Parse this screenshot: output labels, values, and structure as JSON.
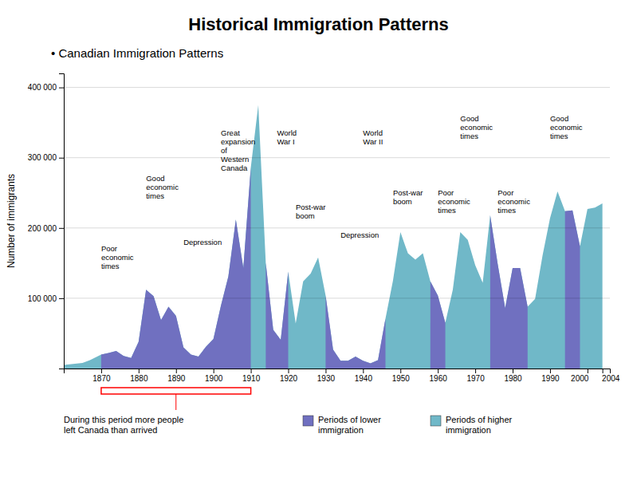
{
  "chart_data": {
    "type": "area",
    "title": "Historical Immigration Patterns",
    "subtitle": "• Canadian Immigration Patterns",
    "ylabel": "Number of immigrants",
    "x": [
      1860,
      1865,
      1867,
      1870,
      1872,
      1874,
      1876,
      1878,
      1880,
      1882,
      1884,
      1886,
      1888,
      1890,
      1892,
      1894,
      1896,
      1898,
      1900,
      1902,
      1904,
      1906,
      1908,
      1910,
      1912,
      1914,
      1916,
      1918,
      1920,
      1922,
      1924,
      1926,
      1928,
      1930,
      1932,
      1934,
      1936,
      1938,
      1940,
      1942,
      1944,
      1946,
      1948,
      1950,
      1952,
      1954,
      1956,
      1958,
      1960,
      1962,
      1964,
      1966,
      1968,
      1970,
      1972,
      1974,
      1976,
      1978,
      1980,
      1982,
      1984,
      1986,
      1988,
      1990,
      1992,
      1994,
      1996,
      1998,
      2000,
      2002,
      2004
    ],
    "values": [
      5000,
      8000,
      12000,
      20000,
      22000,
      25000,
      18000,
      15000,
      38000,
      112000,
      103000,
      69000,
      88000,
      75000,
      30000,
      20000,
      17000,
      31000,
      42000,
      89000,
      131000,
      212000,
      143000,
      286000,
      375000,
      150000,
      55000,
      41000,
      138000,
      64000,
      124000,
      135000,
      158000,
      104000,
      27000,
      11000,
      11000,
      17000,
      11000,
      7500,
      12000,
      71000,
      125000,
      194000,
      164000,
      155000,
      164000,
      124000,
      104000,
      65000,
      112000,
      194000,
      183000,
      147000,
      122000,
      218000,
      149000,
      86000,
      143000,
      143000,
      88000,
      99000,
      161000,
      214000,
      252000,
      224000,
      225000,
      174000,
      227000,
      229000,
      235000
    ],
    "series": [
      {
        "name": "Periods of lower\nimmigration",
        "color": "#7070c0",
        "periods": [
          [
            1870,
            1910
          ],
          [
            1914,
            1920
          ],
          [
            1929,
            1946
          ],
          [
            1957,
            1962
          ],
          [
            1974,
            1985
          ],
          [
            1993,
            1998
          ]
        ]
      },
      {
        "name": "Periods of higher\nimmigration",
        "color": "#70b8c8"
      }
    ],
    "xlim": [
      1860,
      2006
    ],
    "ylim": [
      0,
      420000
    ],
    "xticks": [
      1870,
      1880,
      1890,
      1900,
      1910,
      1920,
      1930,
      1940,
      1950,
      1960,
      1970,
      1980,
      1990,
      2000,
      2004
    ],
    "yticks": [
      {
        "value": 100000,
        "label": "100 000"
      },
      {
        "value": 200000,
        "label": "200 000"
      },
      {
        "value": 300000,
        "label": "300 000"
      },
      {
        "value": 400000,
        "label": "400 000"
      }
    ],
    "grid": true,
    "legend": "bottom",
    "annotations": [
      {
        "text": "Poor\neconomic\ntimes",
        "x": 1870,
        "y": 175000
      },
      {
        "text": "Good\neconomic\ntimes",
        "x": 1882,
        "y": 275000
      },
      {
        "text": "Depression",
        "x": 1892,
        "y": 185000
      },
      {
        "text": "Great\nexpansion\nof\nWestern\nCanada",
        "x": 1902,
        "y": 340000
      },
      {
        "text": "World\nWar I",
        "x": 1917,
        "y": 340000
      },
      {
        "text": "Post-war\nboom",
        "x": 1922,
        "y": 235000
      },
      {
        "text": "Depression",
        "x": 1934,
        "y": 195000
      },
      {
        "text": "World\nWar II",
        "x": 1940,
        "y": 340000
      },
      {
        "text": "Post-war\nboom",
        "x": 1948,
        "y": 255000
      },
      {
        "text": "Poor\neconomic\ntimes",
        "x": 1960,
        "y": 255000
      },
      {
        "text": "Good\neconomic\ntimes",
        "x": 1966,
        "y": 360000
      },
      {
        "text": "Poor\neconomic\ntimes",
        "x": 1976,
        "y": 255000
      },
      {
        "text": "Good\neconomic\ntimes",
        "x": 1990,
        "y": 360000
      }
    ],
    "period_note": {
      "text": "During this period more people\nleft Canada than arrived",
      "start": 1870,
      "end": 1910,
      "color": "red"
    }
  }
}
